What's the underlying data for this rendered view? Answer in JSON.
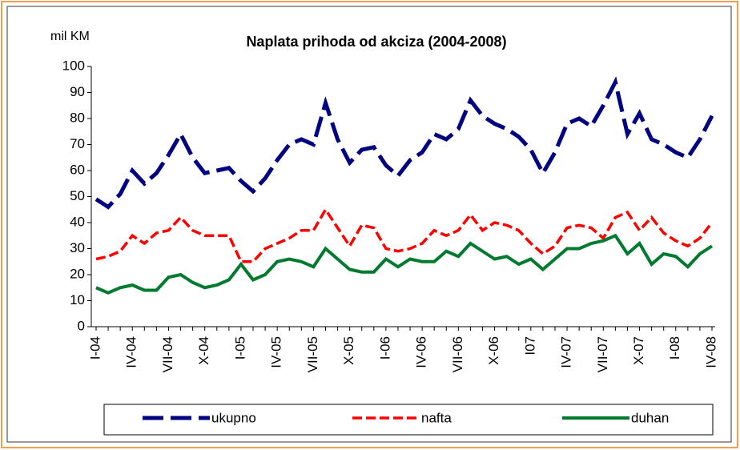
{
  "chart_data": {
    "type": "line",
    "title": "Naplata prihoda od akciza (2004-2008)",
    "y_axis_label": "mil KM",
    "categories": [
      "I-04",
      null,
      null,
      "IV-04",
      null,
      null,
      "VII-04",
      null,
      null,
      "X-04",
      null,
      null,
      "I-05",
      null,
      null,
      "IV-05",
      null,
      null,
      "VII-05",
      null,
      null,
      "X-05",
      null,
      null,
      "I-06",
      null,
      null,
      "IV-06",
      null,
      null,
      "VII-06",
      null,
      null,
      "X-06",
      null,
      null,
      "I07",
      null,
      null,
      "IV-07",
      null,
      null,
      "VII-07",
      null,
      null,
      "X-07",
      null,
      null,
      "I-08",
      null,
      null,
      "IV-08"
    ],
    "series": [
      {
        "name": "ukupno",
        "color": "#000080",
        "style": "long-dash",
        "values": [
          49,
          46,
          51,
          60,
          55,
          59,
          66,
          74,
          65,
          59,
          60,
          61,
          56,
          52,
          57,
          64,
          70,
          72,
          70,
          86,
          72,
          63,
          68,
          69,
          62,
          58,
          64,
          67,
          74,
          72,
          76,
          87,
          81,
          78,
          76,
          73,
          68,
          59,
          67,
          78,
          80,
          77,
          85,
          94,
          74,
          82,
          72,
          70,
          67,
          65,
          72,
          81
        ]
      },
      {
        "name": "nafta",
        "color": "#ff0000",
        "style": "dash",
        "values": [
          26,
          27,
          29,
          35,
          32,
          36,
          37,
          42,
          37,
          35,
          35,
          35,
          25,
          25,
          30,
          32,
          34,
          37,
          37,
          45,
          38,
          31,
          39,
          38,
          30,
          29,
          30,
          32,
          37,
          35,
          37,
          43,
          37,
          40,
          39,
          37,
          32,
          28,
          31,
          38,
          39,
          38,
          34,
          42,
          44,
          37,
          42,
          36,
          33,
          31,
          34,
          40
        ]
      },
      {
        "name": "duhan",
        "color": "#007a2e",
        "style": "solid",
        "values": [
          15,
          13,
          15,
          16,
          14,
          14,
          19,
          20,
          17,
          15,
          16,
          18,
          24,
          18,
          20,
          25,
          26,
          25,
          23,
          30,
          26,
          22,
          21,
          21,
          26,
          23,
          26,
          25,
          25,
          29,
          27,
          32,
          29,
          26,
          27,
          24,
          26,
          22,
          26,
          30,
          30,
          32,
          33,
          35,
          28,
          32,
          24,
          28,
          27,
          23,
          28,
          31
        ]
      }
    ],
    "ylim": [
      0,
      100
    ],
    "yticks": [
      0,
      10,
      20,
      30,
      40,
      50,
      60,
      70,
      80,
      90,
      100
    ],
    "legend": "bottom"
  }
}
